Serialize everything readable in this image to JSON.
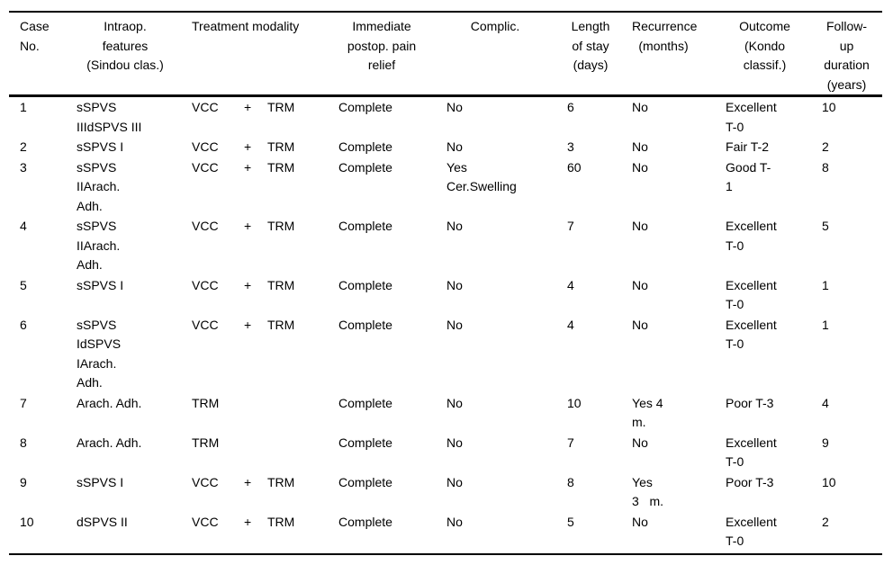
{
  "colors": {
    "text": "#000000",
    "background": "#ffffff",
    "rule": "#000000"
  },
  "table": {
    "header": {
      "case_no": "Case\nNo.",
      "intraop_features": "Intraop.\nfeatures\n(Sindou clas.)",
      "treatment_modality": "Treatment modality",
      "pain_relief": "Immediate\npostop. pain\nrelief",
      "complications": "Complic.",
      "length_of_stay": "Length\nof stay\n(days)",
      "recurrence": "Recurrence\n(months)",
      "outcome": "Outcome\n(Kondo\nclassif.)",
      "follow_up": "Follow-\nup\nduration\n(years)"
    },
    "rows": [
      {
        "case_no": "1",
        "features": "sSPVS\nIIIdSPVS III",
        "treatment_primary": "VCC",
        "treatment_plus": "+",
        "treatment_secondary": "TRM",
        "pain_relief": "Complete",
        "complications": "No",
        "length_of_stay": "6",
        "recurrence": "No",
        "outcome": "Excellent\nT-0",
        "follow_up": "10"
      },
      {
        "case_no": "2",
        "features": "sSPVS I",
        "treatment_primary": "VCC",
        "treatment_plus": "+",
        "treatment_secondary": "TRM",
        "pain_relief": "Complete",
        "complications": "No",
        "length_of_stay": "3",
        "recurrence": "No",
        "outcome": "Fair T-2",
        "follow_up": "2"
      },
      {
        "case_no": "3",
        "features": "sSPVS\nIIArach.\nAdh.",
        "treatment_primary": "VCC",
        "treatment_plus": "+",
        "treatment_secondary": "TRM",
        "pain_relief": "Complete",
        "complications": "Yes\nCer.Swelling",
        "length_of_stay": "60",
        "recurrence": "No",
        "outcome": "Good T-\n1",
        "follow_up": "8"
      },
      {
        "case_no": "4",
        "features": "sSPVS\nIIArach.\nAdh.",
        "treatment_primary": "VCC",
        "treatment_plus": "+",
        "treatment_secondary": "TRM",
        "pain_relief": "Complete",
        "complications": "No",
        "length_of_stay": "7",
        "recurrence": "No",
        "outcome": "Excellent\nT-0",
        "follow_up": "5"
      },
      {
        "case_no": "5",
        "features": "sSPVS I",
        "treatment_primary": "VCC",
        "treatment_plus": "+",
        "treatment_secondary": "TRM",
        "pain_relief": "Complete",
        "complications": "No",
        "length_of_stay": "4",
        "recurrence": "No",
        "outcome": "Excellent\nT-0",
        "follow_up": "1"
      },
      {
        "case_no": "6",
        "features": "sSPVS\nIdSPVS\nIArach.\nAdh.",
        "treatment_primary": "VCC",
        "treatment_plus": "+",
        "treatment_secondary": "TRM",
        "pain_relief": "Complete",
        "complications": "No",
        "length_of_stay": "4",
        "recurrence": "No",
        "outcome": "Excellent\nT-0",
        "follow_up": "1"
      },
      {
        "case_no": "7",
        "features": "Arach. Adh.",
        "treatment_primary": "TRM",
        "treatment_plus": "",
        "treatment_secondary": "",
        "pain_relief": "Complete",
        "complications": "No",
        "length_of_stay": "10",
        "recurrence": "Yes 4\nm.",
        "outcome": "Poor T-3",
        "follow_up": "4"
      },
      {
        "case_no": "8",
        "features": "Arach. Adh.",
        "treatment_primary": "TRM",
        "treatment_plus": "",
        "treatment_secondary": "",
        "pain_relief": "Complete",
        "complications": "No",
        "length_of_stay": "7",
        "recurrence": "No",
        "outcome": "Excellent\nT-0",
        "follow_up": "9"
      },
      {
        "case_no": "9",
        "features": "sSPVS I",
        "treatment_primary": "VCC",
        "treatment_plus": "+",
        "treatment_secondary": "TRM",
        "pain_relief": "Complete",
        "complications": "No",
        "length_of_stay": "8",
        "recurrence": "Yes\n3   m.",
        "outcome": "Poor T-3",
        "follow_up": "10"
      },
      {
        "case_no": "10",
        "features": "dSPVS II",
        "treatment_primary": "VCC",
        "treatment_plus": "+",
        "treatment_secondary": "TRM",
        "pain_relief": "Complete",
        "complications": "No",
        "length_of_stay": "5",
        "recurrence": "No",
        "outcome": "Excellent\nT-0",
        "follow_up": "2"
      }
    ]
  }
}
